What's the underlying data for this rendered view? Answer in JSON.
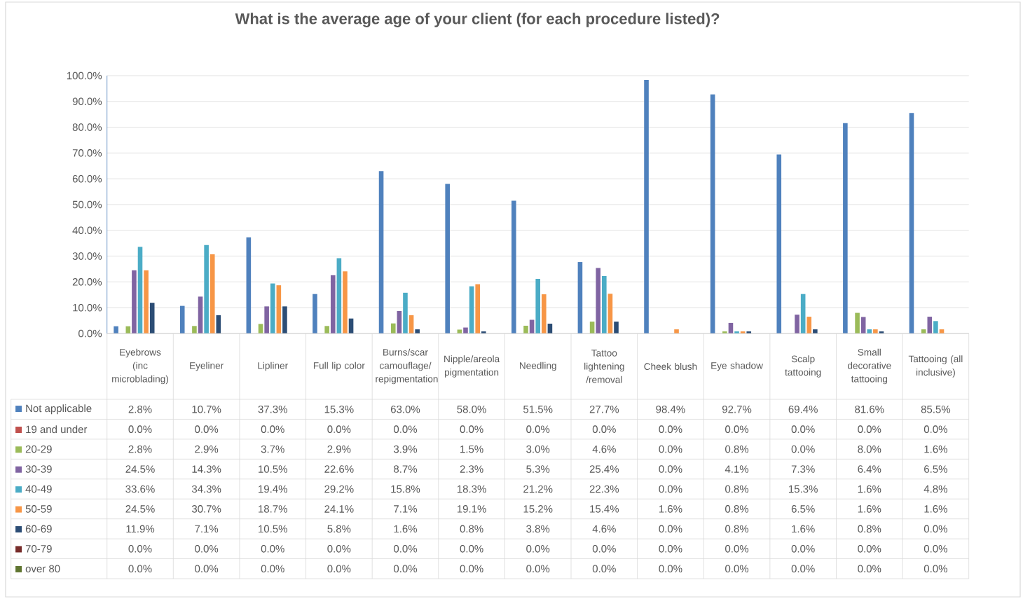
{
  "chart_data": {
    "type": "bar",
    "title": "What is the average age of your client (for each procedure listed)?",
    "categories": [
      "Eyebrows (inc microblading)",
      "Eyeliner",
      "Lipliner",
      "Full lip color",
      "Burns/scar camouflage/repigmentation",
      "Nipple/areola pigmentation",
      "Needling",
      "Tattoo lightening /removal",
      "Cheek blush",
      "Eye shadow",
      "Scalp tattooing",
      "Small decorative tattooing",
      "Tattooing (all inclusive)"
    ],
    "series": [
      {
        "name": "Not applicable",
        "color": "#4f81bd",
        "values": [
          2.8,
          10.7,
          37.3,
          15.3,
          63.0,
          58.0,
          51.5,
          27.7,
          98.4,
          92.7,
          69.4,
          81.6,
          85.5
        ],
        "value_labels": [
          "2.8%",
          "10.7%",
          "37.3%",
          "15.3%",
          "63.0%",
          "58.0%",
          "51.5%",
          "27.7%",
          "98.4%",
          "92.7%",
          "69.4%",
          "81.6%",
          "85.5%"
        ]
      },
      {
        "name": "19 and under",
        "color": "#c0504d",
        "values": [
          0.0,
          0.0,
          0.0,
          0.0,
          0.0,
          0.0,
          0.0,
          0.0,
          0.0,
          0.0,
          0.0,
          0.0,
          0.0
        ],
        "value_labels": [
          "0.0%",
          "0.0%",
          "0.0%",
          "0.0%",
          "0.0%",
          "0.0%",
          "0.0%",
          "0.0%",
          "0.0%",
          "0.0%",
          "0.0%",
          "0.0%",
          "0.0%"
        ]
      },
      {
        "name": "20-29",
        "color": "#9bbb59",
        "values": [
          2.8,
          2.9,
          3.7,
          2.9,
          3.9,
          1.5,
          3.0,
          4.6,
          0.0,
          0.8,
          0.0,
          8.0,
          1.6
        ],
        "value_labels": [
          "2.8%",
          "2.9%",
          "3.7%",
          "2.9%",
          "3.9%",
          "1.5%",
          "3.0%",
          "4.6%",
          "0.0%",
          "0.8%",
          "0.0%",
          "8.0%",
          "1.6%"
        ]
      },
      {
        "name": "30-39",
        "color": "#8064a2",
        "values": [
          24.5,
          14.3,
          10.5,
          22.6,
          8.7,
          2.3,
          5.3,
          25.4,
          0.0,
          4.1,
          7.3,
          6.4,
          6.5
        ],
        "value_labels": [
          "24.5%",
          "14.3%",
          "10.5%",
          "22.6%",
          "8.7%",
          "2.3%",
          "5.3%",
          "25.4%",
          "0.0%",
          "4.1%",
          "7.3%",
          "6.4%",
          "6.5%"
        ]
      },
      {
        "name": "40-49",
        "color": "#4bacc6",
        "values": [
          33.6,
          34.3,
          19.4,
          29.2,
          15.8,
          18.3,
          21.2,
          22.3,
          0.0,
          0.8,
          15.3,
          1.6,
          4.8
        ],
        "value_labels": [
          "33.6%",
          "34.3%",
          "19.4%",
          "29.2%",
          "15.8%",
          "18.3%",
          "21.2%",
          "22.3%",
          "0.0%",
          "0.8%",
          "15.3%",
          "1.6%",
          "4.8%"
        ]
      },
      {
        "name": "50-59",
        "color": "#f79646",
        "values": [
          24.5,
          30.7,
          18.7,
          24.1,
          7.1,
          19.1,
          15.2,
          15.4,
          1.6,
          0.8,
          6.5,
          1.6,
          1.6
        ],
        "value_labels": [
          "24.5%",
          "30.7%",
          "18.7%",
          "24.1%",
          "7.1%",
          "19.1%",
          "15.2%",
          "15.4%",
          "1.6%",
          "0.8%",
          "6.5%",
          "1.6%",
          "1.6%"
        ]
      },
      {
        "name": "60-69",
        "color": "#2c4d75",
        "values": [
          11.9,
          7.1,
          10.5,
          5.8,
          1.6,
          0.8,
          3.8,
          4.6,
          0.0,
          0.8,
          1.6,
          0.8,
          0.0
        ],
        "value_labels": [
          "11.9%",
          "7.1%",
          "10.5%",
          "5.8%",
          "1.6%",
          "0.8%",
          "3.8%",
          "4.6%",
          "0.0%",
          "0.8%",
          "1.6%",
          "0.8%",
          "0.0%"
        ]
      },
      {
        "name": "70-79",
        "color": "#772c2a",
        "values": [
          0.0,
          0.0,
          0.0,
          0.0,
          0.0,
          0.0,
          0.0,
          0.0,
          0.0,
          0.0,
          0.0,
          0.0,
          0.0
        ],
        "value_labels": [
          "0.0%",
          "0.0%",
          "0.0%",
          "0.0%",
          "0.0%",
          "0.0%",
          "0.0%",
          "0.0%",
          "0.0%",
          "0.0%",
          "0.0%",
          "0.0%",
          "0.0%"
        ]
      },
      {
        "name": "over 80",
        "color": "#5f7530",
        "values": [
          0.0,
          0.0,
          0.0,
          0.0,
          0.0,
          0.0,
          0.0,
          0.0,
          0.0,
          0.0,
          0.0,
          0.0,
          0.0
        ],
        "value_labels": [
          "0.0%",
          "0.0%",
          "0.0%",
          "0.0%",
          "0.0%",
          "0.0%",
          "0.0%",
          "0.0%",
          "0.0%",
          "0.0%",
          "0.0%",
          "0.0%",
          "0.0%"
        ]
      }
    ],
    "ylim": [
      0,
      100
    ],
    "yticks": [
      {
        "value": 0,
        "label": "0.0%"
      },
      {
        "value": 10,
        "label": "10.0%"
      },
      {
        "value": 20,
        "label": "20.0%"
      },
      {
        "value": 30,
        "label": "30.0%"
      },
      {
        "value": 40,
        "label": "40.0%"
      },
      {
        "value": 50,
        "label": "50.0%"
      },
      {
        "value": 60,
        "label": "60.0%"
      },
      {
        "value": 70,
        "label": "70.0%"
      },
      {
        "value": 80,
        "label": "80.0%"
      },
      {
        "value": 90,
        "label": "90.0%"
      },
      {
        "value": 100,
        "label": "100.0%"
      }
    ],
    "grid": "y",
    "legend": "bottom"
  }
}
